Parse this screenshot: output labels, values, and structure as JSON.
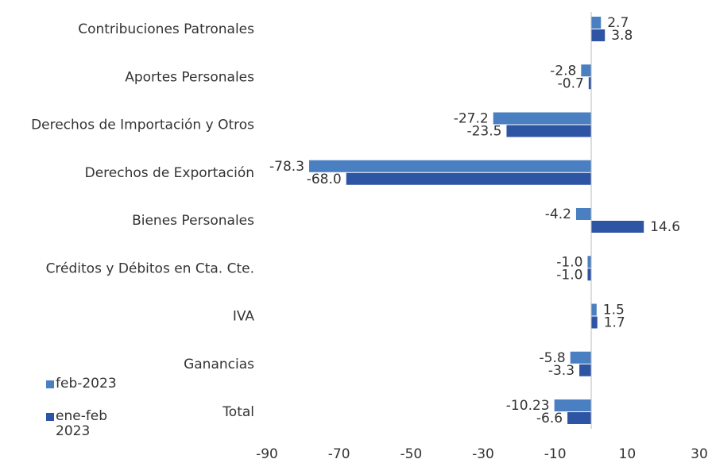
{
  "chart_data": {
    "type": "bar",
    "orientation": "horizontal",
    "categories": [
      "Contribuciones Patronales",
      "Aportes Personales",
      "Derechos de Importación y Otros",
      "Derechos de Exportación",
      "Bienes Personales",
      "Créditos y Débitos en Cta. Cte.",
      "IVA",
      "Ganancias",
      "Total"
    ],
    "series": [
      {
        "name": "feb-2023",
        "color": "#4a7fc1",
        "values": [
          2.7,
          -2.8,
          -27.2,
          -78.3,
          -4.2,
          -1.0,
          1.5,
          -5.8,
          -10.23
        ],
        "value_labels": [
          "2.7",
          "-2.8",
          "-27.2",
          "-78.3",
          "-4.2",
          "-1.0",
          "1.5",
          "-5.8",
          "-10.23"
        ]
      },
      {
        "name": "ene-feb 2023",
        "color": "#2e54a4",
        "values": [
          3.8,
          -0.7,
          -23.5,
          -68.0,
          14.6,
          -1.0,
          1.7,
          -3.3,
          -6.6
        ],
        "value_labels": [
          "3.8",
          "-0.7",
          "-23.5",
          "-68.0",
          "14.6",
          "-1.0",
          "1.7",
          "-3.3",
          "-6.6"
        ]
      }
    ],
    "xlim": [
      -90,
      30
    ],
    "xticks": [
      -90,
      -70,
      -50,
      -30,
      -10,
      10,
      30
    ],
    "grid": false,
    "legend": "bottom-left"
  }
}
